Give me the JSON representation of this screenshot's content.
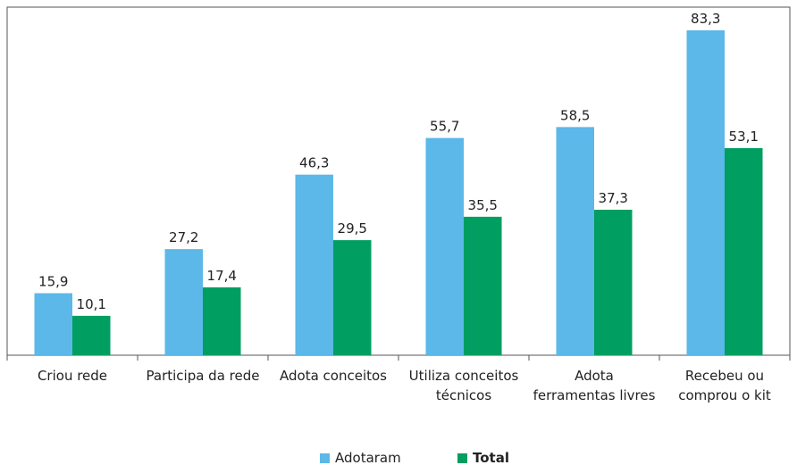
{
  "chart_data": {
    "type": "bar",
    "categories": [
      "Criou rede",
      "Participa da rede",
      "Adota conceitos",
      "Utiliza conceitos técnicos",
      "Adota ferramentas livres",
      "Recebeu ou comprou o kit"
    ],
    "series": [
      {
        "name": "Adotaram",
        "color": "#5bb8e8",
        "values": [
          15.9,
          27.2,
          46.3,
          55.7,
          58.5,
          83.3
        ],
        "value_labels": [
          "15,9",
          "27,2",
          "46,3",
          "55,7",
          "58,5",
          "83,3"
        ]
      },
      {
        "name": "Total",
        "color": "#009e60",
        "values": [
          10.1,
          17.4,
          29.5,
          35.5,
          37.3,
          53.1
        ],
        "value_labels": [
          "10,1",
          "17,4",
          "29,5",
          "35,5",
          "37,3",
          "53,1"
        ]
      }
    ]
  }
}
